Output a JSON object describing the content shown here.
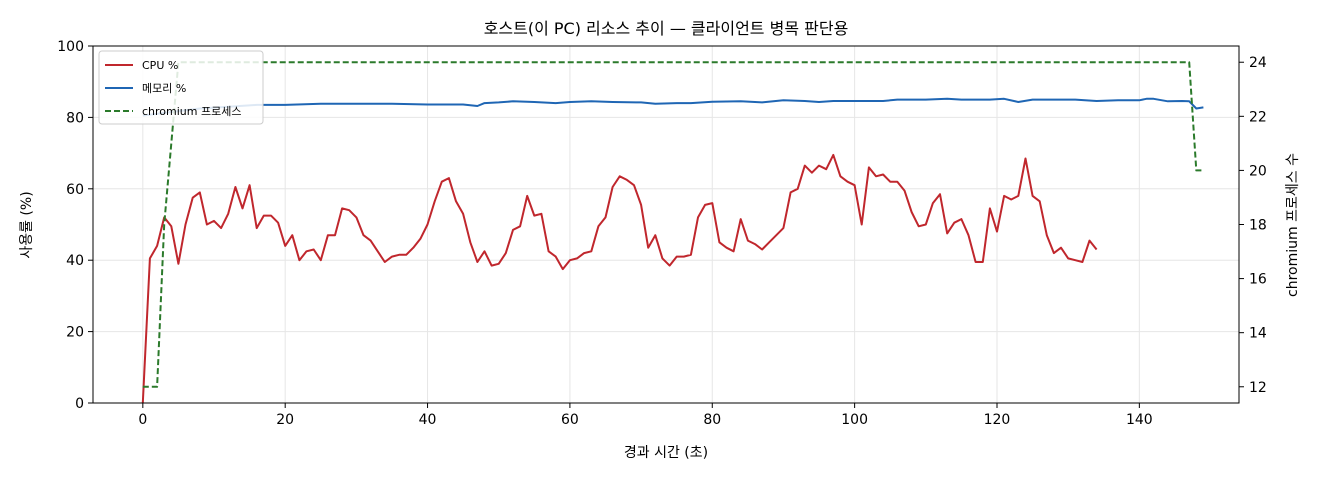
{
  "chart_data": {
    "type": "line",
    "title": "호스트(이 PC) 리소스 추이 — 클라이언트 병목 판단용",
    "xlabel": "경과 시간 (초)",
    "ylabel": "사용률 (%)",
    "y2label": "chromium 프로세스 수",
    "xlim": [
      -7,
      154
    ],
    "ylim": [
      0,
      100
    ],
    "y2lim": [
      11.4,
      24.6
    ],
    "xticks": [
      0,
      20,
      40,
      60,
      80,
      100,
      120,
      140
    ],
    "yticks": [
      0,
      20,
      40,
      60,
      80,
      100
    ],
    "y2ticks": [
      12,
      14,
      16,
      18,
      20,
      22,
      24
    ],
    "grid": true,
    "legend_position": "top-left",
    "colors": {
      "cpu": "#c0272d",
      "mem": "#1f66b4",
      "chromium": "#2b7a2b"
    },
    "series": [
      {
        "name": "CPU %",
        "axis": "left",
        "style": "solid",
        "values": [
          [
            0,
            0
          ],
          [
            1,
            40.5
          ],
          [
            2,
            44
          ],
          [
            3,
            52
          ],
          [
            4,
            49.5
          ],
          [
            5,
            39
          ],
          [
            6,
            50
          ],
          [
            7,
            57.5
          ],
          [
            8,
            59
          ],
          [
            9,
            50
          ],
          [
            10,
            51
          ],
          [
            11,
            49
          ],
          [
            12,
            53
          ],
          [
            13,
            60.5
          ],
          [
            14,
            54.5
          ],
          [
            15,
            61
          ],
          [
            16,
            49
          ],
          [
            17,
            52.5
          ],
          [
            18,
            52.5
          ],
          [
            19,
            50.5
          ],
          [
            20,
            44
          ],
          [
            21,
            47
          ],
          [
            22,
            40
          ],
          [
            23,
            42.5
          ],
          [
            24,
            43
          ],
          [
            25,
            40
          ],
          [
            26,
            47
          ],
          [
            27,
            47
          ],
          [
            28,
            54.5
          ],
          [
            29,
            54
          ],
          [
            30,
            52
          ],
          [
            31,
            47
          ],
          [
            32,
            45.5
          ],
          [
            33,
            42.5
          ],
          [
            34,
            39.5
          ],
          [
            35,
            41
          ],
          [
            36,
            41.5
          ],
          [
            37,
            41.5
          ],
          [
            38,
            43.5
          ],
          [
            39,
            46
          ],
          [
            40,
            50
          ],
          [
            41,
            56.5
          ],
          [
            42,
            62
          ],
          [
            43,
            63
          ],
          [
            44,
            56.5
          ],
          [
            45,
            53
          ],
          [
            46,
            45
          ],
          [
            47,
            39.5
          ],
          [
            48,
            42.5
          ],
          [
            49,
            38.5
          ],
          [
            50,
            39
          ],
          [
            51,
            42
          ],
          [
            52,
            48.5
          ],
          [
            53,
            49.5
          ],
          [
            54,
            58
          ],
          [
            55,
            52.5
          ],
          [
            56,
            53
          ],
          [
            57,
            42.5
          ],
          [
            58,
            41
          ],
          [
            59,
            37.5
          ],
          [
            60,
            40
          ],
          [
            61,
            40.5
          ],
          [
            62,
            42
          ],
          [
            63,
            42.5
          ],
          [
            64,
            49.5
          ],
          [
            65,
            52
          ],
          [
            66,
            60.5
          ],
          [
            67,
            63.5
          ],
          [
            68,
            62.5
          ],
          [
            69,
            61
          ],
          [
            70,
            55.5
          ],
          [
            71,
            43.5
          ],
          [
            72,
            47
          ],
          [
            73,
            40.5
          ],
          [
            74,
            38.5
          ],
          [
            75,
            41
          ],
          [
            76,
            41
          ],
          [
            77,
            41.5
          ],
          [
            78,
            52
          ],
          [
            79,
            55.5
          ],
          [
            80,
            56
          ],
          [
            81,
            45
          ],
          [
            82,
            43.5
          ],
          [
            83,
            42.5
          ],
          [
            84,
            51.5
          ],
          [
            85,
            45.5
          ],
          [
            86,
            44.5
          ],
          [
            87,
            43
          ],
          [
            88,
            45
          ],
          [
            89,
            47
          ],
          [
            90,
            49
          ],
          [
            91,
            59
          ],
          [
            92,
            60
          ],
          [
            93,
            66.5
          ],
          [
            94,
            64.5
          ],
          [
            95,
            66.5
          ],
          [
            96,
            65.5
          ],
          [
            97,
            69.5
          ],
          [
            98,
            63.5
          ],
          [
            99,
            62
          ],
          [
            100,
            61
          ],
          [
            101,
            50
          ],
          [
            102,
            66
          ],
          [
            103,
            63.5
          ],
          [
            104,
            64
          ],
          [
            105,
            62
          ],
          [
            106,
            62
          ],
          [
            107,
            59.5
          ],
          [
            108,
            53.5
          ],
          [
            109,
            49.5
          ],
          [
            110,
            50
          ],
          [
            111,
            56
          ],
          [
            112,
            58.5
          ],
          [
            113,
            47.5
          ],
          [
            114,
            50.5
          ],
          [
            115,
            51.5
          ],
          [
            116,
            47
          ],
          [
            117,
            39.5
          ],
          [
            118,
            39.5
          ],
          [
            119,
            54.5
          ],
          [
            120,
            48
          ],
          [
            121,
            58
          ],
          [
            122,
            57
          ],
          [
            123,
            58
          ],
          [
            124,
            68.5
          ],
          [
            125,
            58
          ],
          [
            126,
            56.5
          ],
          [
            127,
            47
          ],
          [
            128,
            42
          ],
          [
            129,
            43.5
          ],
          [
            130,
            40.5
          ],
          [
            131,
            40
          ],
          [
            132,
            39.5
          ],
          [
            133,
            45.5
          ],
          [
            134,
            43
          ]
        ]
      },
      {
        "name": "메모리 %",
        "axis": "left",
        "style": "solid",
        "values": [
          [
            0,
            80.5
          ],
          [
            4,
            81.5
          ],
          [
            8,
            82.5
          ],
          [
            12,
            83
          ],
          [
            16,
            83.5
          ],
          [
            20,
            83.5
          ],
          [
            25,
            83.8
          ],
          [
            30,
            83.8
          ],
          [
            35,
            83.8
          ],
          [
            40,
            83.6
          ],
          [
            45,
            83.6
          ],
          [
            47,
            83.2
          ],
          [
            48,
            84
          ],
          [
            50,
            84.2
          ],
          [
            52,
            84.5
          ],
          [
            55,
            84.3
          ],
          [
            58,
            84
          ],
          [
            60,
            84.3
          ],
          [
            63,
            84.5
          ],
          [
            66,
            84.3
          ],
          [
            70,
            84.2
          ],
          [
            72,
            83.8
          ],
          [
            75,
            84
          ],
          [
            77,
            84
          ],
          [
            80,
            84.4
          ],
          [
            84,
            84.5
          ],
          [
            87,
            84.2
          ],
          [
            90,
            84.8
          ],
          [
            93,
            84.6
          ],
          [
            95,
            84.3
          ],
          [
            97,
            84.6
          ],
          [
            100,
            84.6
          ],
          [
            104,
            84.6
          ],
          [
            106,
            85
          ],
          [
            110,
            85
          ],
          [
            113,
            85.2
          ],
          [
            115,
            85
          ],
          [
            119,
            85
          ],
          [
            121,
            85.2
          ],
          [
            123,
            84.3
          ],
          [
            125,
            85
          ],
          [
            128,
            85
          ],
          [
            131,
            85
          ],
          [
            134,
            84.6
          ],
          [
            137,
            84.8
          ],
          [
            140,
            84.8
          ],
          [
            141,
            85.2
          ],
          [
            142,
            85.2
          ],
          [
            144,
            84.5
          ],
          [
            146,
            84.6
          ],
          [
            147,
            84.5
          ],
          [
            148,
            82.5
          ],
          [
            149,
            82.8
          ]
        ]
      },
      {
        "name": "chromium 프로세스",
        "axis": "right",
        "style": "dashed",
        "values": [
          [
            0,
            12
          ],
          [
            2,
            12
          ],
          [
            3,
            18
          ],
          [
            4,
            21
          ],
          [
            5,
            24
          ],
          [
            147,
            24
          ],
          [
            148,
            20
          ],
          [
            149,
            20
          ]
        ]
      }
    ]
  }
}
